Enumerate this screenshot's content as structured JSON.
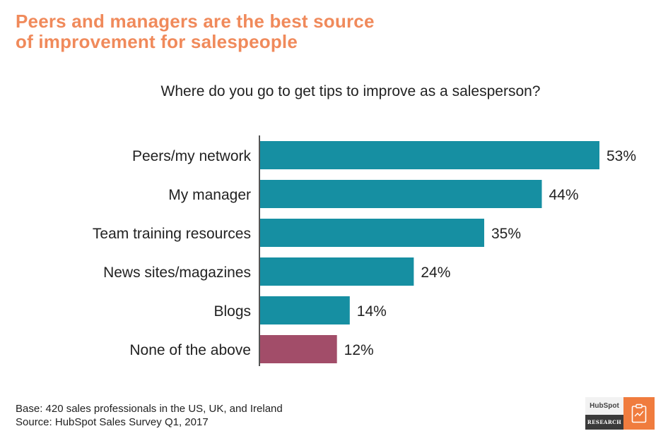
{
  "headline": {
    "line1": "Peers and managers are the best source",
    "line2": "of improvement for salespeople"
  },
  "footnote": {
    "base": "Base: 420 sales professionals in the US, UK, and Ireland",
    "source": "Source: HubSpot Sales Survey Q1, 2017"
  },
  "logo": {
    "brand": "HubSpot",
    "label": "RESEARCH",
    "icon": "clipboard-chart-icon"
  },
  "colors": {
    "headline": "#f08a5b",
    "bar": "#168fa2",
    "bar_highlight": "#a24d69",
    "logo_accent": "#f07c3e"
  },
  "chart_data": {
    "type": "bar",
    "orientation": "horizontal",
    "title": "Where do you go to get tips to improve as a salesperson?",
    "categories": [
      "Peers/my network",
      "My manager",
      "Team training resources",
      "News sites/magazines",
      "Blogs",
      "None of the above"
    ],
    "values": [
      53,
      44,
      35,
      24,
      14,
      12
    ],
    "value_labels": [
      "53%",
      "44%",
      "35%",
      "24%",
      "14%",
      "12%"
    ],
    "highlight_index": 5,
    "unit": "%",
    "xlim": [
      0,
      53
    ],
    "grid": false,
    "legend": "none"
  }
}
